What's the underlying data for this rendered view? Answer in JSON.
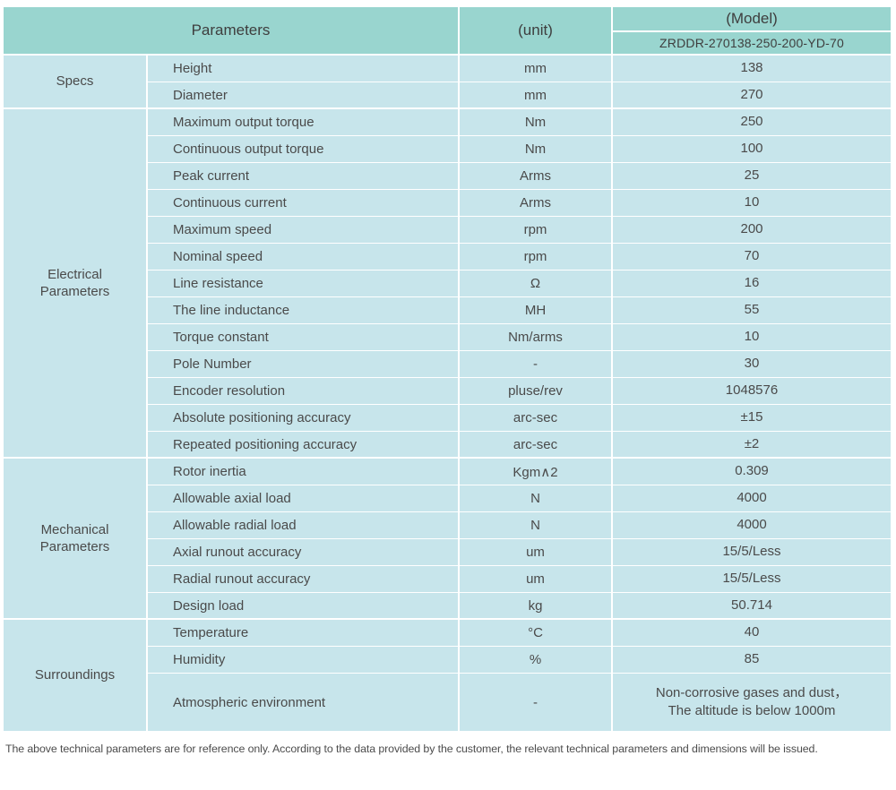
{
  "header": {
    "parameters": "Parameters",
    "unit": "(unit)",
    "model_label": "(Model)",
    "model_value": "ZRDDR-270138-250-200-YD-70"
  },
  "sections": [
    {
      "group": "Specs",
      "rows": [
        {
          "param": "Height",
          "unit": "mm",
          "value": "138"
        },
        {
          "param": "Diameter",
          "unit": "mm",
          "value": "270"
        }
      ]
    },
    {
      "group": "Electrical\nParameters",
      "rows": [
        {
          "param": "Maximum output torque",
          "unit": "Nm",
          "value": "250"
        },
        {
          "param": "Continuous output torque",
          "unit": "Nm",
          "value": "100"
        },
        {
          "param": "Peak current",
          "unit": "Arms",
          "value": "25"
        },
        {
          "param": "Continuous current",
          "unit": "Arms",
          "value": "10"
        },
        {
          "param": "Maximum speed",
          "unit": "rpm",
          "value": "200"
        },
        {
          "param": "Nominal speed",
          "unit": "rpm",
          "value": "70"
        },
        {
          "param": "Line resistance",
          "unit": "Ω",
          "value": "16"
        },
        {
          "param": "The line inductance",
          "unit": "MH",
          "value": "55"
        },
        {
          "param": "Torque constant",
          "unit": "Nm/arms",
          "value": "10"
        },
        {
          "param": "Pole Number",
          "unit": "-",
          "value": "30"
        },
        {
          "param": "Encoder resolution",
          "unit": "pluse/rev",
          "value": "1048576"
        },
        {
          "param": "Absolute positioning accuracy",
          "unit": "arc-sec",
          "value": "±15"
        },
        {
          "param": "Repeated positioning accuracy",
          "unit": "arc-sec",
          "value": "±2"
        }
      ]
    },
    {
      "group": "Mechanical\nParameters",
      "rows": [
        {
          "param": "Rotor inertia",
          "unit": "Kgm∧2",
          "value": "0.309"
        },
        {
          "param": "Allowable axial load",
          "unit": "N",
          "value": "4000"
        },
        {
          "param": "Allowable radial load",
          "unit": "N",
          "value": "4000"
        },
        {
          "param": "Axial runout accuracy",
          "unit": "um",
          "value": "15/5/Less"
        },
        {
          "param": "Radial runout accuracy",
          "unit": "um",
          "value": "15/5/Less"
        },
        {
          "param": "Design load",
          "unit": "kg",
          "value": "50.714"
        }
      ]
    },
    {
      "group": "Surroundings",
      "rows": [
        {
          "param": "Temperature",
          "unit": "°C",
          "value": "40"
        },
        {
          "param": "Humidity",
          "unit": "%",
          "value": "85"
        },
        {
          "param": "Atmospheric environment",
          "unit": "-",
          "value": "Non-corrosive gases and dust，\nThe altitude is below 1000m",
          "tall": true
        }
      ]
    }
  ],
  "footer": "The above technical parameters are for reference only. According to the data provided by the customer, the relevant technical parameters and dimensions will be issued.",
  "colors": {
    "header_bg": "#99d5cf",
    "row_bg": "#c7e5eb",
    "border": "#ffffff",
    "text": "#4a4a4a"
  }
}
